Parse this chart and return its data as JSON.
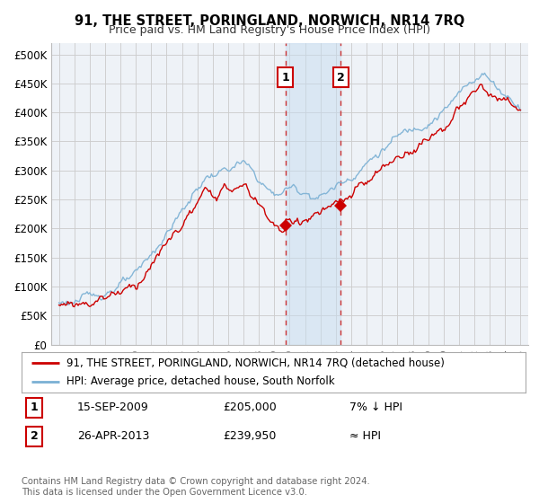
{
  "title": "91, THE STREET, PORINGLAND, NORWICH, NR14 7RQ",
  "subtitle": "Price paid vs. HM Land Registry's House Price Index (HPI)",
  "ylim": [
    0,
    520000
  ],
  "yticks": [
    0,
    50000,
    100000,
    150000,
    200000,
    250000,
    300000,
    350000,
    400000,
    450000,
    500000
  ],
  "ytick_labels": [
    "£0",
    "£50K",
    "£100K",
    "£150K",
    "£200K",
    "£250K",
    "£300K",
    "£350K",
    "£400K",
    "£450K",
    "£500K"
  ],
  "background_color": "#ffffff",
  "plot_bg_color": "#f0f4f8",
  "grid_color": "#cccccc",
  "red_line_color": "#cc0000",
  "blue_line_color": "#7ab0d4",
  "marker1_date": 2009.71,
  "marker1_value": 205000,
  "marker1_label": "1",
  "marker2_date": 2013.32,
  "marker2_value": 239950,
  "marker2_label": "2",
  "shade_start": 2009.71,
  "shade_end": 2013.32,
  "legend_line1": "91, THE STREET, PORINGLAND, NORWICH, NR14 7RQ (detached house)",
  "legend_line2": "HPI: Average price, detached house, South Norfolk",
  "annotation1_num": "1",
  "annotation1_date": "15-SEP-2009",
  "annotation1_price": "£205,000",
  "annotation1_note": "7% ↓ HPI",
  "annotation2_num": "2",
  "annotation2_date": "26-APR-2013",
  "annotation2_price": "£239,950",
  "annotation2_note": "≈ HPI",
  "footer": "Contains HM Land Registry data © Crown copyright and database right 2024.\nThis data is licensed under the Open Government Licence v3.0.",
  "xmin": 1994.5,
  "xmax": 2025.5
}
